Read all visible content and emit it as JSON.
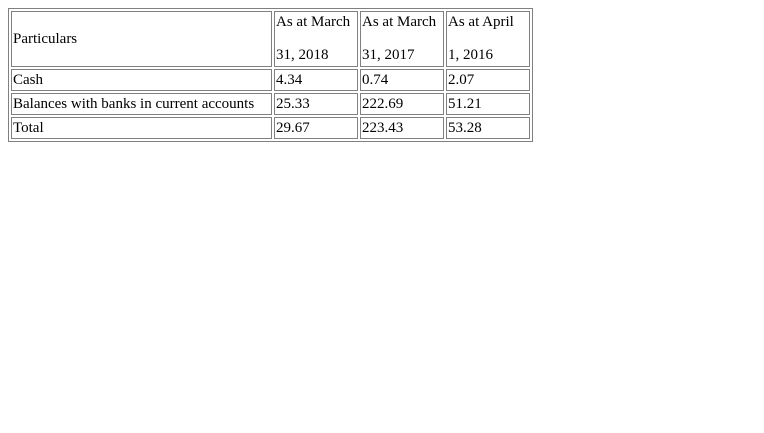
{
  "table": {
    "header": {
      "particulars": "Particulars",
      "columns": [
        {
          "line1": "As at March",
          "line2": "31, 2018"
        },
        {
          "line1": "As at March",
          "line2": "31, 2017"
        },
        {
          "line1": "As at April",
          "line2": "1, 2016"
        }
      ]
    },
    "rows": [
      {
        "label": "Cash",
        "values": [
          "4.34",
          "0.74",
          "2.07"
        ]
      },
      {
        "label": "Balances with banks in current accounts",
        "values": [
          "25.33",
          "222.69",
          "51.21"
        ]
      },
      {
        "label": "Total",
        "values": [
          "29.67",
          "223.43",
          "53.28"
        ]
      }
    ]
  }
}
